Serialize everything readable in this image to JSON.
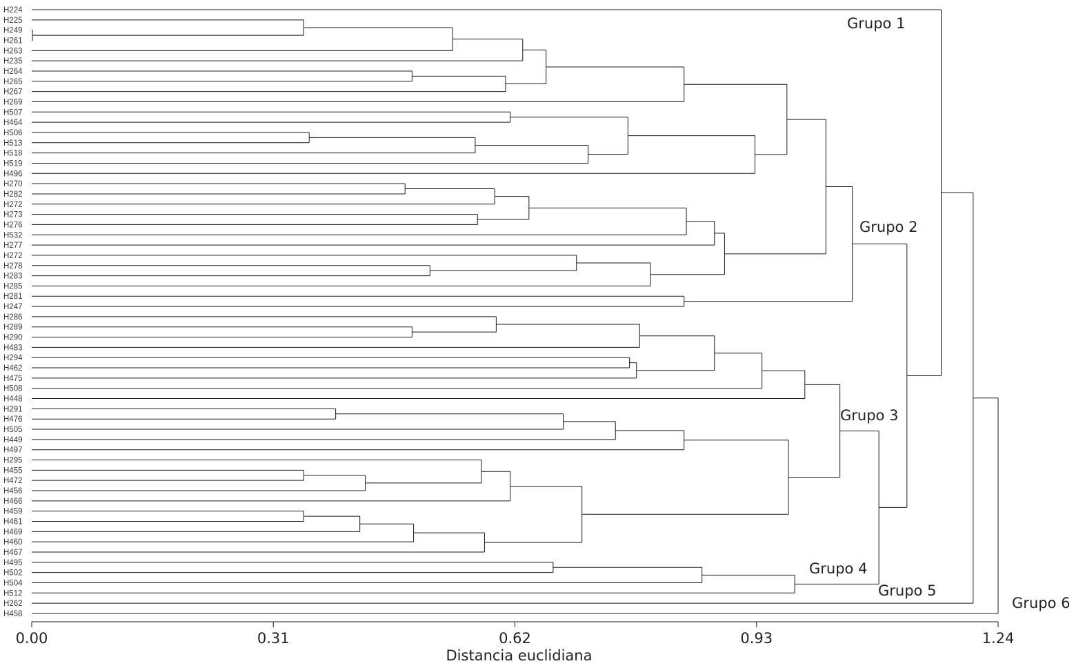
{
  "chart_data": {
    "type": "dendrogram",
    "xlabel": "Distancia euclidiana",
    "xlim": [
      0,
      1.24
    ],
    "ticks": [
      "0.00",
      "0.31",
      "0.62",
      "0.93",
      "1.24"
    ],
    "tick_values": [
      0,
      0.31,
      0.62,
      0.93,
      1.24
    ],
    "leaves": [
      "H224",
      "H225",
      "H249",
      "H261",
      "H263",
      "H235",
      "H264",
      "H265",
      "H267",
      "H269",
      "H507",
      "H464",
      "H506",
      "H513",
      "H518",
      "H519",
      "H496",
      "H270",
      "H282",
      "H272",
      "H273",
      "H276",
      "H532",
      "H277",
      "H272",
      "H278",
      "H283",
      "H285",
      "H281",
      "H247",
      "H286",
      "H289",
      "H290",
      "H483",
      "H294",
      "H462",
      "H475",
      "H508",
      "H448",
      "H291",
      "H476",
      "H505",
      "H449",
      "H497",
      "H295",
      "H455",
      "H472",
      "H456",
      "H466",
      "H459",
      "H461",
      "H469",
      "H460",
      "H467",
      "H495",
      "H502",
      "H504",
      "H512",
      "H262",
      "H458"
    ],
    "merges": [
      {
        "id": "c249_261",
        "height": 0.001,
        "children": [
          "L2",
          "L3"
        ]
      },
      {
        "id": "c225",
        "height": 0.349,
        "children": [
          "L1",
          "c249_261"
        ]
      },
      {
        "id": "c263",
        "height": 0.54,
        "children": [
          "c225",
          "L4"
        ]
      },
      {
        "id": "cA",
        "height": 0.63,
        "children": [
          "c263",
          "L5"
        ]
      },
      {
        "id": "c264",
        "height": 0.488,
        "children": [
          "L6",
          "L7"
        ]
      },
      {
        "id": "cB",
        "height": 0.608,
        "children": [
          "c264",
          "L8"
        ]
      },
      {
        "id": "cAB",
        "height": 0.66,
        "children": [
          "cA",
          "cB"
        ]
      },
      {
        "id": "c269",
        "height": 0.837,
        "children": [
          "cAB",
          "L9"
        ]
      },
      {
        "id": "c507",
        "height": 0.614,
        "children": [
          "L10",
          "L11"
        ]
      },
      {
        "id": "c506",
        "height": 0.356,
        "children": [
          "L12",
          "L13"
        ]
      },
      {
        "id": "c518",
        "height": 0.569,
        "children": [
          "c506",
          "L14"
        ]
      },
      {
        "id": "c519",
        "height": 0.714,
        "children": [
          "c518",
          "L15"
        ]
      },
      {
        "id": "cC",
        "height": 0.765,
        "children": [
          "c507",
          "c519"
        ]
      },
      {
        "id": "c496",
        "height": 0.928,
        "children": [
          "cC",
          "L16"
        ]
      },
      {
        "id": "cG1",
        "height": 0.969,
        "children": [
          "c269",
          "c496"
        ]
      },
      {
        "id": "c270",
        "height": 0.479,
        "children": [
          "L17",
          "L18"
        ]
      },
      {
        "id": "c272",
        "height": 0.594,
        "children": [
          "c270",
          "L19"
        ]
      },
      {
        "id": "c273",
        "height": 0.572,
        "children": [
          "L20",
          "L21"
        ]
      },
      {
        "id": "cD",
        "height": 0.638,
        "children": [
          "c272",
          "c273"
        ]
      },
      {
        "id": "c532",
        "height": 0.84,
        "children": [
          "cD",
          "L22"
        ]
      },
      {
        "id": "c277",
        "height": 0.876,
        "children": [
          "c532",
          "L23"
        ]
      },
      {
        "id": "c283",
        "height": 0.511,
        "children": [
          "L25",
          "L26"
        ]
      },
      {
        "id": "c278",
        "height": 0.699,
        "children": [
          "L24",
          "c283"
        ]
      },
      {
        "id": "c285",
        "height": 0.794,
        "children": [
          "c278",
          "L27"
        ]
      },
      {
        "id": "cE",
        "height": 0.889,
        "children": [
          "c277",
          "c285"
        ]
      },
      {
        "id": "cF",
        "height": 1.019,
        "children": [
          "cG1",
          "cE"
        ]
      },
      {
        "id": "c281",
        "height": 0.837,
        "children": [
          "L28",
          "L29"
        ]
      },
      {
        "id": "cG2",
        "height": 1.053,
        "children": [
          "cF",
          "c281"
        ]
      },
      {
        "id": "c289",
        "height": 0.488,
        "children": [
          "L31",
          "L32"
        ]
      },
      {
        "id": "c286",
        "height": 0.596,
        "children": [
          "L30",
          "c289"
        ]
      },
      {
        "id": "c483",
        "height": 0.78,
        "children": [
          "c286",
          "L33"
        ]
      },
      {
        "id": "c294",
        "height": 0.767,
        "children": [
          "L34",
          "L35"
        ]
      },
      {
        "id": "c475",
        "height": 0.776,
        "children": [
          "c294",
          "L36"
        ]
      },
      {
        "id": "cH",
        "height": 0.876,
        "children": [
          "c483",
          "c475"
        ]
      },
      {
        "id": "c508",
        "height": 0.937,
        "children": [
          "cH",
          "L37"
        ]
      },
      {
        "id": "c448",
        "height": 0.992,
        "children": [
          "c508",
          "L38"
        ]
      },
      {
        "id": "c291",
        "height": 0.39,
        "children": [
          "L39",
          "L40"
        ]
      },
      {
        "id": "c505",
        "height": 0.682,
        "children": [
          "c291",
          "L41"
        ]
      },
      {
        "id": "c449",
        "height": 0.749,
        "children": [
          "c505",
          "L42"
        ]
      },
      {
        "id": "c497",
        "height": 0.837,
        "children": [
          "c449",
          "L43"
        ]
      },
      {
        "id": "c455",
        "height": 0.349,
        "children": [
          "L45",
          "L46"
        ]
      },
      {
        "id": "c456",
        "height": 0.428,
        "children": [
          "c455",
          "L47"
        ]
      },
      {
        "id": "c295",
        "height": 0.577,
        "children": [
          "L44",
          "c456"
        ]
      },
      {
        "id": "c466",
        "height": 0.614,
        "children": [
          "c295",
          "L48"
        ]
      },
      {
        "id": "c459",
        "height": 0.349,
        "children": [
          "L49",
          "L50"
        ]
      },
      {
        "id": "c469",
        "height": 0.421,
        "children": [
          "c459",
          "L51"
        ]
      },
      {
        "id": "c460",
        "height": 0.49,
        "children": [
          "c469",
          "L52"
        ]
      },
      {
        "id": "c467",
        "height": 0.581,
        "children": [
          "c460",
          "L53"
        ]
      },
      {
        "id": "cI",
        "height": 0.706,
        "children": [
          "c466",
          "c467"
        ]
      },
      {
        "id": "cJ",
        "height": 0.971,
        "children": [
          "c497",
          "cI"
        ]
      },
      {
        "id": "cG3",
        "height": 1.037,
        "children": [
          "c448",
          "cJ"
        ]
      },
      {
        "id": "c495",
        "height": 0.669,
        "children": [
          "L54",
          "L55"
        ]
      },
      {
        "id": "c504",
        "height": 0.86,
        "children": [
          "c495",
          "L56"
        ]
      },
      {
        "id": "cG4",
        "height": 0.979,
        "children": [
          "c504",
          "L57"
        ]
      },
      {
        "id": "cG5",
        "height": 1.087,
        "children": [
          "cG3",
          "cG4"
        ]
      },
      {
        "id": "cK",
        "height": 1.123,
        "children": [
          "cG2",
          "cG5"
        ]
      },
      {
        "id": "cL",
        "height": 1.167,
        "children": [
          "L0",
          "cK"
        ]
      },
      {
        "id": "cM",
        "height": 1.208,
        "children": [
          "cL",
          "L58"
        ]
      },
      {
        "id": "cRoot",
        "height": 1.24,
        "children": [
          "cM",
          "L59"
        ]
      }
    ],
    "groups": [
      {
        "label": "Grupo 1",
        "node": "cG1"
      },
      {
        "label": "Grupo 2",
        "node": "cG2"
      },
      {
        "label": "Grupo 3",
        "node": "cG3"
      },
      {
        "label": "Grupo 4",
        "node": "cG4"
      },
      {
        "label": "Grupo 5",
        "node": "cG5"
      },
      {
        "label": "Grupo 6",
        "node": "cRoot"
      }
    ]
  }
}
